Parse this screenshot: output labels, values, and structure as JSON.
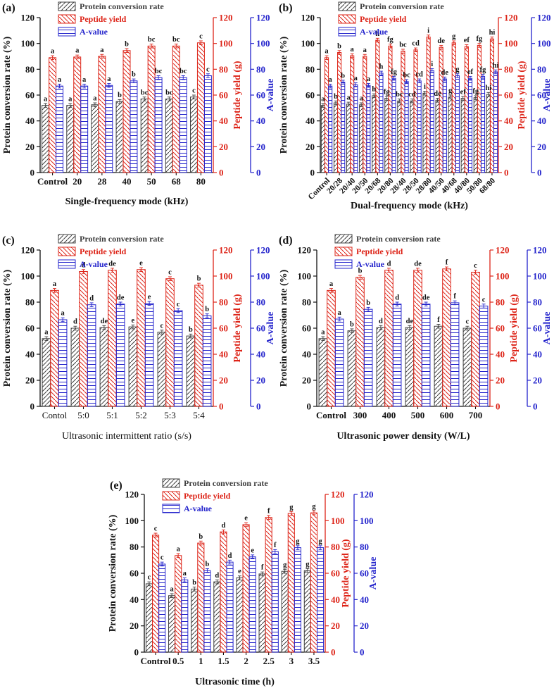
{
  "figure": {
    "background": "#ffffff",
    "colors": {
      "protein": "#3f3f3f",
      "peptide": "#dd2418",
      "a_value": "#2424cc",
      "letters": "#111111"
    },
    "legend_labels": [
      "Protein conversion rate",
      "Peptide yield",
      "A-value"
    ]
  },
  "chart_data": [
    {
      "id": "a",
      "panel_label": "(a)",
      "type": "bar",
      "xlabel": "Single-frequency mode (kHz)",
      "ylabel_left": "Protein conversion rate (%)",
      "ylabel_right1": "Peptide yield (g)",
      "ylabel_right2": "A-value",
      "ylim": [
        0,
        120
      ],
      "ytick_step": 20,
      "legend_position": "top-left",
      "grid": false,
      "categories": [
        "Control",
        "20",
        "28",
        "40",
        "50",
        "68",
        "80"
      ],
      "sig_letters": [
        "a",
        "a",
        "a",
        "b",
        "bc",
        "bc",
        "c"
      ],
      "error_bar_approx": 1.5,
      "series": [
        {
          "name": "Protein conversion rate",
          "values": [
            52,
            52,
            52.5,
            55,
            57,
            57,
            58.5
          ]
        },
        {
          "name": "Peptide yield",
          "values": [
            89,
            89.5,
            90,
            94.5,
            98,
            98,
            100.5
          ]
        },
        {
          "name": "A-value",
          "values": [
            67,
            67,
            67.5,
            71,
            73.5,
            73.5,
            75
          ]
        }
      ]
    },
    {
      "id": "b",
      "panel_label": "(b)",
      "type": "bar",
      "xlabel": "Dual-frequency mode (kHz)",
      "ylabel_left": "Protein conversion rate (%)",
      "ylabel_right1": "Peptide yield (g)",
      "ylabel_right2": "A-value",
      "ylim": [
        0,
        120
      ],
      "ytick_step": 20,
      "legend_position": "top-left",
      "grid": false,
      "categories": [
        "Control",
        "20/28",
        "20/40",
        "20/50",
        "20/68",
        "20/80",
        "28/40",
        "28/50",
        "28/80",
        "40/50",
        "40/68",
        "40/80",
        "50/80",
        "68/80"
      ],
      "sig_letters": [
        "a",
        "b",
        "a",
        "a",
        "h",
        "fg",
        "bc",
        "cd",
        "i",
        "de",
        "g",
        "ef",
        "fg",
        "hi"
      ],
      "error_bar_approx": 1.5,
      "series": [
        {
          "name": "Protein conversion rate",
          "values": [
            52,
            54,
            53,
            52.5,
            59.5,
            57.5,
            55.5,
            55.5,
            61.5,
            56,
            58.5,
            57.5,
            58,
            60.5
          ]
        },
        {
          "name": "Peptide yield",
          "values": [
            89,
            93,
            90.5,
            90,
            102.5,
            98,
            94,
            95,
            105,
            97,
            100.5,
            97.5,
            98.5,
            103.5
          ]
        },
        {
          "name": "A-value",
          "values": [
            67,
            70,
            68,
            67.5,
            77,
            73,
            70.5,
            71,
            79,
            72.5,
            75,
            73,
            74.5,
            78
          ]
        }
      ]
    },
    {
      "id": "c",
      "panel_label": "(c)",
      "type": "bar",
      "xlabel": "Ultrasonic intermittent ratio (s/s)",
      "ylabel_left": "Protein conversion rate (%)",
      "ylabel_right1": "Peptide yield (g)",
      "ylabel_right2": "A-value",
      "ylim": [
        0,
        120
      ],
      "ytick_step": 20,
      "legend_position": "top-left",
      "grid": false,
      "categories": [
        "Contol",
        "5:0",
        "5:1",
        "5:2",
        "5:3",
        "5:4"
      ],
      "sig_letters": [
        "a",
        "d",
        "de",
        "e",
        "c",
        "b"
      ],
      "error_bar_approx": 1.5,
      "series": [
        {
          "name": "Protein conversion rate",
          "values": [
            52,
            60,
            60.5,
            61,
            57,
            54
          ]
        },
        {
          "name": "Peptide yield",
          "values": [
            89,
            103.5,
            104.5,
            105,
            98,
            93
          ]
        },
        {
          "name": "A-value",
          "values": [
            66.5,
            78,
            78.5,
            79,
            73.5,
            69.5
          ]
        }
      ]
    },
    {
      "id": "d",
      "panel_label": "(d)",
      "type": "bar",
      "xlabel": "Ultrasonic power density (W/L)",
      "ylabel_left": "Protein conversion rate (%)",
      "ylabel_right1": "Peptide yield (g)",
      "ylabel_right2": "A-value",
      "ylim": [
        0,
        120
      ],
      "ytick_step": 20,
      "legend_position": "top-left",
      "grid": false,
      "categories": [
        "Control",
        "300",
        "400",
        "500",
        "600",
        "700"
      ],
      "sig_letters": [
        "a",
        "b",
        "d",
        "de",
        "f",
        "c"
      ],
      "error_bar_approx": 1.5,
      "series": [
        {
          "name": "Protein conversion rate",
          "values": [
            52,
            58,
            60.5,
            60.5,
            61.5,
            60
          ]
        },
        {
          "name": "Peptide yield",
          "values": [
            89,
            99,
            104.5,
            104.5,
            105.5,
            103
          ]
        },
        {
          "name": "A-value",
          "values": [
            67,
            74.5,
            78.5,
            78.5,
            79.5,
            77
          ]
        }
      ]
    },
    {
      "id": "e",
      "panel_label": "(e)",
      "type": "bar",
      "xlabel": "Ultrasonic time (h)",
      "ylabel_left": "Protein conversion rate (%)",
      "ylabel_right1": "Peptide yield (g)",
      "ylabel_right2": "A-value",
      "ylim": [
        0,
        120
      ],
      "ytick_step": 20,
      "legend_position": "top-left",
      "grid": false,
      "categories": [
        "Control",
        "0.5",
        "1",
        "1.5",
        "2",
        "2.5",
        "3",
        "3.5"
      ],
      "sig_letters": [
        "c",
        "a",
        "b",
        "d",
        "e",
        "f",
        "g",
        "g"
      ],
      "error_bar_approx": 1.5,
      "series": [
        {
          "name": "Protein conversion rate",
          "values": [
            52,
            43,
            48,
            53.5,
            56.5,
            59.5,
            61.5,
            62
          ]
        },
        {
          "name": "Peptide yield",
          "values": [
            89,
            73.5,
            83,
            91.5,
            97,
            102.5,
            105.5,
            106
          ]
        },
        {
          "name": "A-value",
          "values": [
            67,
            55,
            62,
            68.5,
            72.5,
            76.5,
            79.5,
            79.5
          ]
        }
      ]
    }
  ]
}
